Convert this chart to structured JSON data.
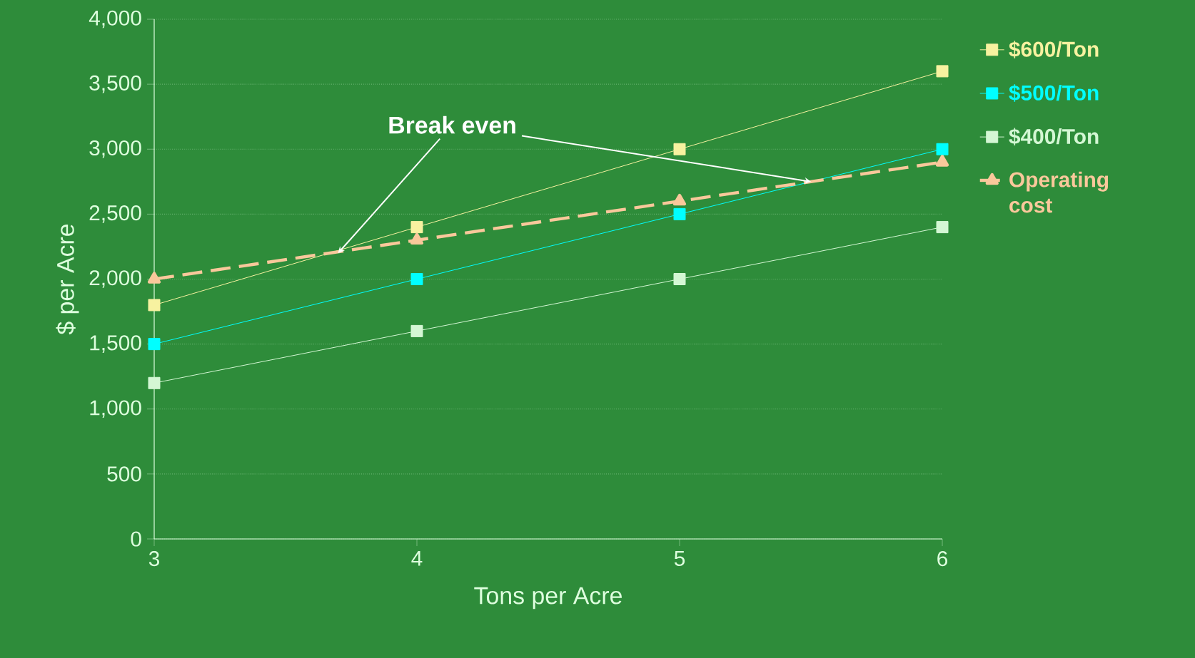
{
  "chart_data": {
    "type": "line",
    "xlabel": "Tons per Acre",
    "ylabel": "$ per Acre",
    "x": [
      3,
      4,
      5,
      6
    ],
    "xlim": [
      3,
      6
    ],
    "xticks": [
      3,
      4,
      5,
      6
    ],
    "ylim": [
      0,
      4000
    ],
    "yticks": [
      {
        "value": 0,
        "label": "0"
      },
      {
        "value": 500,
        "label": "500"
      },
      {
        "value": 1000,
        "label": "1,000"
      },
      {
        "value": 1500,
        "label": "1,500"
      },
      {
        "value": 2000,
        "label": "2,000"
      },
      {
        "value": 2500,
        "label": "2,500"
      },
      {
        "value": 3000,
        "label": "3,000"
      },
      {
        "value": 3500,
        "label": "3,500"
      },
      {
        "value": 4000,
        "label": "4,000"
      }
    ],
    "grid": "y",
    "legend": "right",
    "series": [
      {
        "name": "$600/Ton",
        "color": "#f7f2a0",
        "values": [
          1800,
          2400,
          3000,
          3600
        ],
        "marker": "square",
        "line_style": "solid"
      },
      {
        "name": "$500/Ton",
        "color": "#00ffff",
        "values": [
          1500,
          2000,
          2500,
          3000
        ],
        "marker": "square",
        "line_style": "solid"
      },
      {
        "name": "$400/Ton",
        "color": "#d4f7d4",
        "values": [
          1200,
          1600,
          2000,
          2400
        ],
        "marker": "square",
        "line_style": "solid"
      },
      {
        "name": "Operating cost",
        "color": "#f9c89b",
        "values": [
          2000,
          2300,
          2600,
          2900
        ],
        "marker": "triangle",
        "line_style": "dashed"
      }
    ],
    "annotations": [
      {
        "text": "Break even",
        "x": 3.7,
        "y": 2200
      }
    ]
  }
}
